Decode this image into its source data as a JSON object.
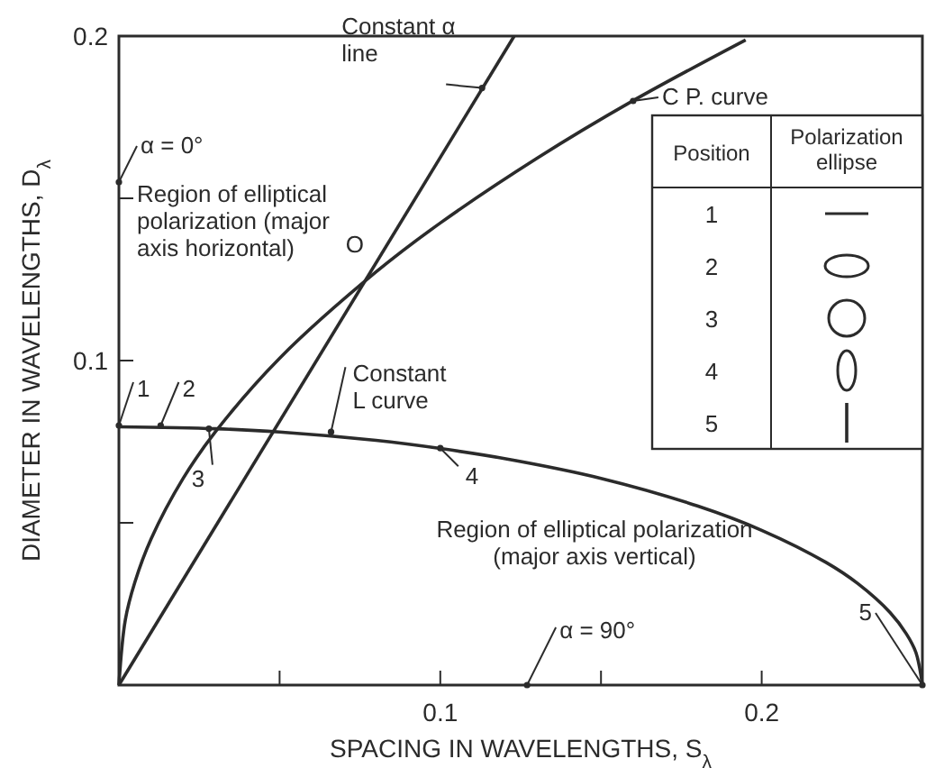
{
  "chart_data": [
    {
      "type": "line",
      "xlabel": "SPACING IN WAVELENGTHS, S$_{λ}$",
      "ylabel": "DIAMETER IN WAVELENGTHS, D$_{λ}$",
      "xlim": [
        0,
        0.25
      ],
      "ylim": [
        0,
        0.2
      ],
      "xticks": [
        {
          "value": 0.05,
          "label": null
        },
        0.1,
        {
          "value": 0.15,
          "label": null
        },
        0.2
      ],
      "yticks": [
        {
          "value": 0.05,
          "label": null
        },
        0.1,
        {
          "value": 0.15,
          "label": null
        },
        0.2
      ],
      "grid": false,
      "marker": "none",
      "line_style": "solid",
      "series": [
        {
          "color": "#2b2b2b",
          "x": [
            0,
            0.123
          ],
          "values": [
            0,
            0.2
          ]
        },
        {
          "color": "#2b2b2b",
          "x": [
            0,
            0.002,
            0.005,
            0.01,
            0.02,
            0.03,
            0.05,
            0.08,
            0.1,
            0.13,
            0.16,
            0.195
          ],
          "values": [
            0,
            0.0201,
            0.0318,
            0.045,
            0.0637,
            0.078,
            0.1007,
            0.1273,
            0.1424,
            0.1623,
            0.1801,
            0.1988
          ]
        },
        {
          "color": "#2b2b2b",
          "x": [
            0,
            0.03,
            0.05,
            0.08,
            0.1,
            0.12,
            0.15,
            0.18,
            0.2,
            0.22,
            0.23,
            0.24,
            0.245,
            0.248,
            0.25
          ],
          "values": [
            0.0796,
            0.079,
            0.078,
            0.0754,
            0.0729,
            0.0698,
            0.0637,
            0.0552,
            0.0477,
            0.0378,
            0.0312,
            0.0223,
            0.0158,
            0.01,
            0
          ]
        }
      ],
      "annotations": [
        {
          "text": "Constant α line",
          "x": 0.113,
          "y": 0.184
        },
        {
          "text": "C P. curve",
          "x": 0.16,
          "y": 0.18
        },
        {
          "text": "α = 0°",
          "x": 0,
          "y": 0.155
        },
        {
          "text": "O",
          "x": 0.079,
          "y": 0.13
        },
        {
          "text": "1",
          "x": 0,
          "y": 0.08
        },
        {
          "text": "2",
          "x": 0.013,
          "y": 0.08
        },
        {
          "text": "3",
          "x": 0.028,
          "y": 0.079
        },
        {
          "text": "Constant L curve",
          "x": 0.066,
          "y": 0.078
        },
        {
          "text": "4",
          "x": 0.1,
          "y": 0.073
        },
        {
          "text": "5",
          "x": 0.25,
          "y": 0
        },
        {
          "text": "α = 90°",
          "x": 0.127,
          "y": 0
        },
        "Region of elliptical polarization (major axis horizontal)",
        "Region of elliptical polarization (major axis vertical)",
        "Position",
        "Polarization ellipse",
        "1",
        "2",
        "3",
        "4",
        "5"
      ]
    }
  ]
}
